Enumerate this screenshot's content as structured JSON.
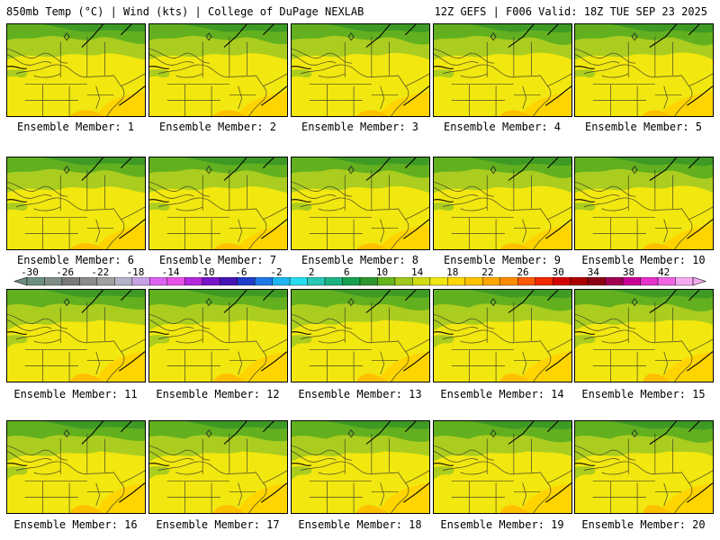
{
  "header": {
    "title": "850mb Temp (°C) | Wind (kts) | College of DuPage NEXLAB",
    "run": "12Z GEFS | F006 Valid: 18Z TUE SEP 23 2025"
  },
  "panels": [
    {
      "caption": "Ensemble Member: 1"
    },
    {
      "caption": "Ensemble Member: 2"
    },
    {
      "caption": "Ensemble Member: 3"
    },
    {
      "caption": "Ensemble Member: 4"
    },
    {
      "caption": "Ensemble Member: 5"
    },
    {
      "caption": "Ensemble Member: 6"
    },
    {
      "caption": "Ensemble Member: 7"
    },
    {
      "caption": "Ensemble Member: 8"
    },
    {
      "caption": "Ensemble Member: 9"
    },
    {
      "caption": "Ensemble Member: 10"
    },
    {
      "caption": "Ensemble Member: 11"
    },
    {
      "caption": "Ensemble Member: 12"
    },
    {
      "caption": "Ensemble Member: 13"
    },
    {
      "caption": "Ensemble Member: 14"
    },
    {
      "caption": "Ensemble Member: 15"
    },
    {
      "caption": "Ensemble Member: 16"
    },
    {
      "caption": "Ensemble Member: 17"
    },
    {
      "caption": "Ensemble Member: 18"
    },
    {
      "caption": "Ensemble Member: 19"
    },
    {
      "caption": "Ensemble Member: 20"
    }
  ],
  "colorbar": {
    "labels": [
      "-30",
      "-26",
      "-22",
      "-18",
      "-14",
      "-10",
      "-6",
      "-2",
      "2",
      "6",
      "10",
      "14",
      "18",
      "22",
      "26",
      "30",
      "34",
      "38",
      "42"
    ],
    "colors": [
      "#6f8f80",
      "#7f8f86",
      "#7a7a7a",
      "#8c8c8c",
      "#a0a0a0",
      "#b4b4c8",
      "#c8a0e6",
      "#dc64f0",
      "#e650e6",
      "#b428dc",
      "#7814c8",
      "#4614b4",
      "#1e3cc8",
      "#1e78e6",
      "#1eb4f0",
      "#28dcf0",
      "#28c8b4",
      "#1eb482",
      "#14a050",
      "#2d962d",
      "#64b41e",
      "#a0c81e",
      "#d2dc14",
      "#f0e614",
      "#ffd700",
      "#ffc300",
      "#ffa500",
      "#ff8c00",
      "#ff5a00",
      "#f02800",
      "#d20000",
      "#aa0000",
      "#8c0014",
      "#a00050",
      "#c80096",
      "#e632c8",
      "#f064e6",
      "#f5aaf0"
    ]
  },
  "palette": {
    "green_dark": "#3e9a25",
    "green": "#62b01f",
    "yellow_green": "#aacd1f",
    "yellow": "#f2e70f",
    "gold": "#ffd400",
    "orange": "#ffc000"
  }
}
